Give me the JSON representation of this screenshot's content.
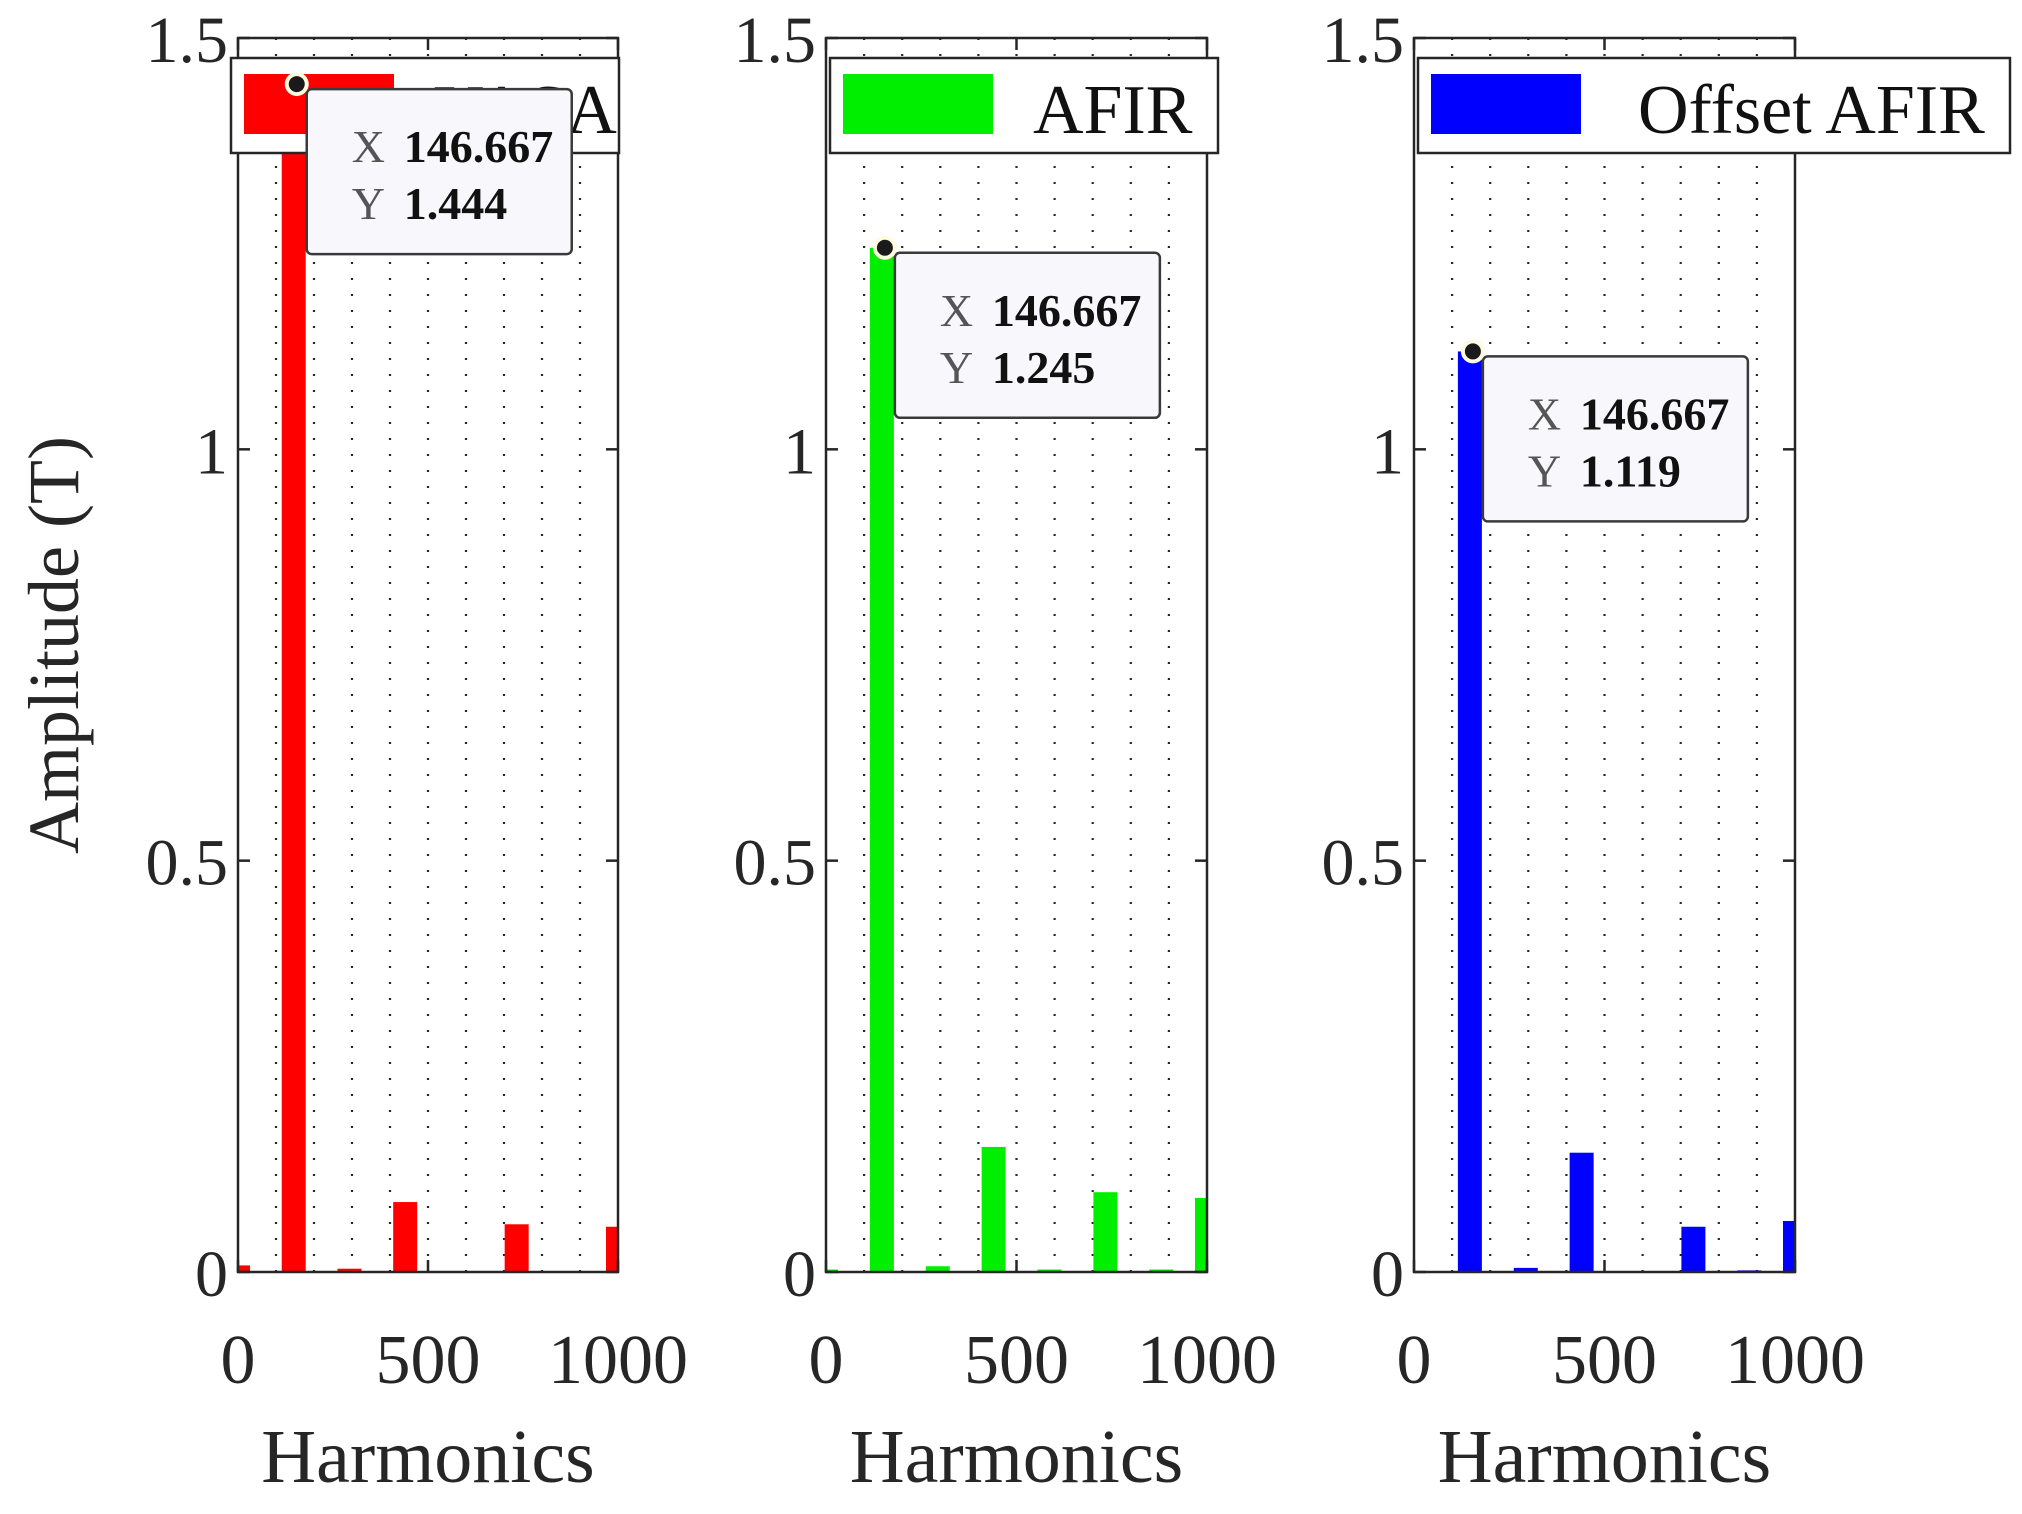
{
  "figure": {
    "ylabel": "Amplitude (T)",
    "xlabel": "Harmonics"
  },
  "chart_data": [
    {
      "type": "bar",
      "name": "yasa",
      "legend": "YASA",
      "color": "#ff0000",
      "xlabel": "Harmonics",
      "ylabel": "Amplitude (T)",
      "xlim": [
        0,
        1000
      ],
      "ylim": [
        0,
        1.5
      ],
      "xticks": [
        "0",
        "500",
        "1000"
      ],
      "yticks": [
        "0",
        "0.5",
        "1",
        "1.5"
      ],
      "grid": "x-dotted",
      "x": [
        0,
        146.667,
        293.333,
        440,
        586.667,
        733.333,
        880,
        1000
      ],
      "values": [
        0.008,
        1.444,
        0.004,
        0.085,
        0.001,
        0.058,
        0.001,
        0.055
      ],
      "datatip": {
        "x_label": "X",
        "x_value": "146.667",
        "y_label": "Y",
        "y_value": "1.444"
      }
    },
    {
      "type": "bar",
      "name": "afir",
      "legend": "AFIR",
      "color": "#00ee00",
      "xlabel": "Harmonics",
      "ylabel": "",
      "xlim": [
        0,
        1000
      ],
      "ylim": [
        0,
        1.5
      ],
      "xticks": [
        "0",
        "500",
        "1000"
      ],
      "yticks": [
        "0",
        "0.5",
        "1",
        "1.5"
      ],
      "grid": "x-dotted",
      "x": [
        0,
        146.667,
        293.333,
        440,
        586.667,
        733.333,
        880,
        1000
      ],
      "values": [
        0.003,
        1.245,
        0.007,
        0.152,
        0.003,
        0.097,
        0.003,
        0.09
      ],
      "datatip": {
        "x_label": "X",
        "x_value": "146.667",
        "y_label": "Y",
        "y_value": "1.245"
      }
    },
    {
      "type": "bar",
      "name": "offset-afir",
      "legend": "Offset AFIR",
      "color": "#0000ff",
      "xlabel": "Harmonics",
      "ylabel": "",
      "xlim": [
        0,
        1000
      ],
      "ylim": [
        0,
        1.5
      ],
      "xticks": [
        "0",
        "500",
        "1000"
      ],
      "yticks": [
        "0",
        "0.5",
        "1",
        "1.5"
      ],
      "grid": "x-dotted",
      "x": [
        0,
        146.667,
        293.333,
        440,
        586.667,
        733.333,
        880,
        1000
      ],
      "values": [
        0.001,
        1.119,
        0.005,
        0.145,
        0.001,
        0.055,
        0.002,
        0.062
      ],
      "datatip": {
        "x_label": "X",
        "x_value": "146.667",
        "y_label": "Y",
        "y_value": "1.119"
      }
    }
  ]
}
